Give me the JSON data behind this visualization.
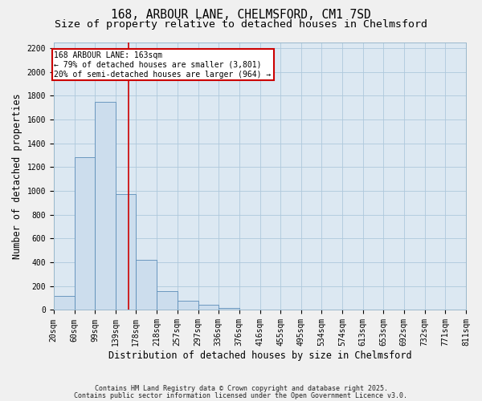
{
  "title_line1": "168, ARBOUR LANE, CHELMSFORD, CM1 7SD",
  "title_line2": "Size of property relative to detached houses in Chelmsford",
  "xlabel": "Distribution of detached houses by size in Chelmsford",
  "ylabel": "Number of detached properties",
  "bin_labels": [
    "20sqm",
    "60sqm",
    "99sqm",
    "139sqm",
    "178sqm",
    "218sqm",
    "257sqm",
    "297sqm",
    "336sqm",
    "376sqm",
    "416sqm",
    "455sqm",
    "495sqm",
    "534sqm",
    "574sqm",
    "613sqm",
    "653sqm",
    "692sqm",
    "732sqm",
    "771sqm",
    "811sqm"
  ],
  "bin_edges": [
    20,
    60,
    99,
    139,
    178,
    218,
    257,
    297,
    336,
    376,
    416,
    455,
    495,
    534,
    574,
    613,
    653,
    692,
    732,
    771,
    811
  ],
  "bar_heights": [
    120,
    1280,
    1750,
    975,
    420,
    155,
    80,
    45,
    20,
    0,
    0,
    0,
    0,
    0,
    0,
    0,
    0,
    0,
    0,
    0
  ],
  "bar_color": "#ccdded",
  "bar_edge_color": "#5b8db8",
  "property_size": 163,
  "vline_color": "#cc0000",
  "annotation_text": "168 ARBOUR LANE: 163sqm\n← 79% of detached houses are smaller (3,801)\n20% of semi-detached houses are larger (964) →",
  "annotation_box_color": "#ffffff",
  "annotation_box_edge": "#cc0000",
  "ylim": [
    0,
    2250
  ],
  "yticks": [
    0,
    200,
    400,
    600,
    800,
    1000,
    1200,
    1400,
    1600,
    1800,
    2000,
    2200
  ],
  "grid_color": "#aec8dc",
  "background_color": "#dce8f2",
  "fig_background_color": "#f0f0f0",
  "footer_line1": "Contains HM Land Registry data © Crown copyright and database right 2025.",
  "footer_line2": "Contains public sector information licensed under the Open Government Licence v3.0.",
  "title_fontsize": 10.5,
  "subtitle_fontsize": 9.5,
  "axis_label_fontsize": 8.5,
  "tick_fontsize": 7,
  "annotation_fontsize": 7,
  "footer_fontsize": 6
}
